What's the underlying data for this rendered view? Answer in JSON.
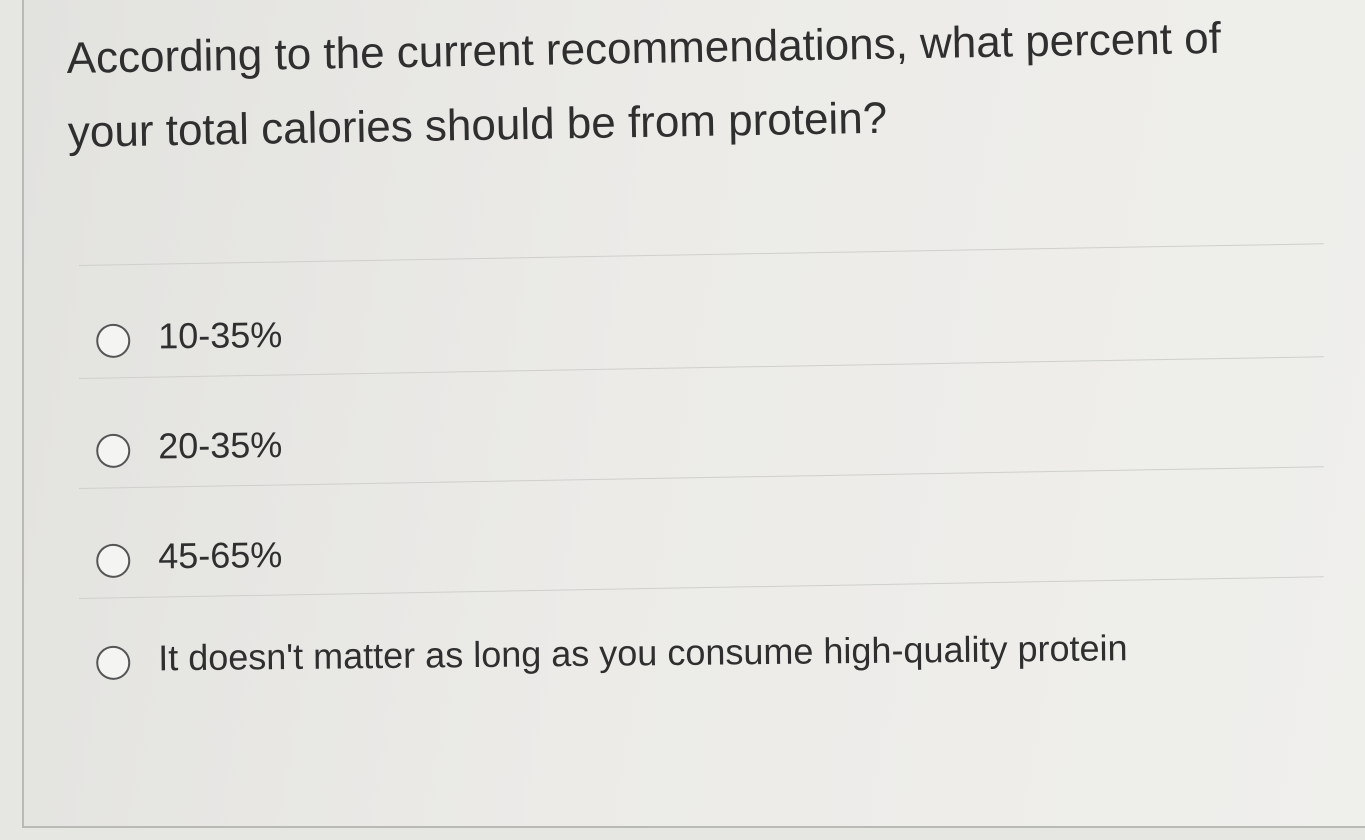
{
  "question": {
    "text": "According to the current recommendations, what percent of your total calories should be from protein?"
  },
  "options": [
    {
      "label": "10-35%",
      "selected": false
    },
    {
      "label": "20-35%",
      "selected": false
    },
    {
      "label": "45-65%",
      "selected": false
    },
    {
      "label": "It doesn't matter as long as you consume high-quality protein",
      "selected": false
    }
  ]
}
